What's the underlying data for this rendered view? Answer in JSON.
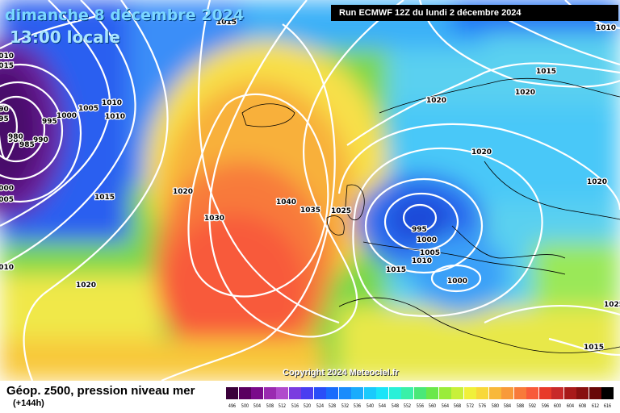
{
  "header": {
    "date": "dimanche 8 décembre 2024",
    "time": "13:00 locale",
    "run": "Run ECMWF 12Z du lundi 2 décembre 2024"
  },
  "map": {
    "copyright": "Copyright 2024 Meteociel.fr",
    "isobar_labels": [
      "1015",
      "1010",
      "995",
      "990",
      "985",
      "980",
      "985",
      "990",
      "995",
      "1000",
      "1005",
      "1010",
      "1010",
      "1000",
      "1005",
      "1015",
      "1020",
      "1030",
      "1040",
      "1035",
      "1025",
      "1020",
      "1015",
      "1020",
      "1020",
      "1010",
      "995",
      "1000",
      "1005",
      "1010",
      "1015",
      "1000",
      "1020",
      "1015",
      "1020",
      "1025",
      "1010",
      "1015",
      "1020"
    ]
  },
  "legend": {
    "title": "Géop. z500, pression niveau mer",
    "subtitle": "(+144h)",
    "scale_labels": [
      "496",
      "500",
      "504",
      "508",
      "512",
      "516",
      "520",
      "524",
      "528",
      "532",
      "536",
      "540",
      "544",
      "548",
      "552",
      "556",
      "560",
      "564",
      "568",
      "572",
      "576",
      "580",
      "584",
      "588",
      "592",
      "596",
      "600",
      "604",
      "608",
      "612",
      "616"
    ],
    "scale_colors": [
      "#3a003a",
      "#5a0060",
      "#7a0a8a",
      "#9a2ab0",
      "#b04acc",
      "#7a3ce0",
      "#4a3ef0",
      "#2a4ef8",
      "#1a6cfc",
      "#1a8cfc",
      "#1aacfc",
      "#1acafc",
      "#1ae4f8",
      "#2af0d8",
      "#3af0a8",
      "#4ae878",
      "#6ae84a",
      "#9aec3a",
      "#c8f03a",
      "#f0f03a",
      "#f8d83a",
      "#f8b83a",
      "#f89a3a",
      "#f87a3a",
      "#f85a3a",
      "#e83a2a",
      "#c82a2a",
      "#a81a1a",
      "#881010",
      "#680808",
      "#000000"
    ]
  }
}
